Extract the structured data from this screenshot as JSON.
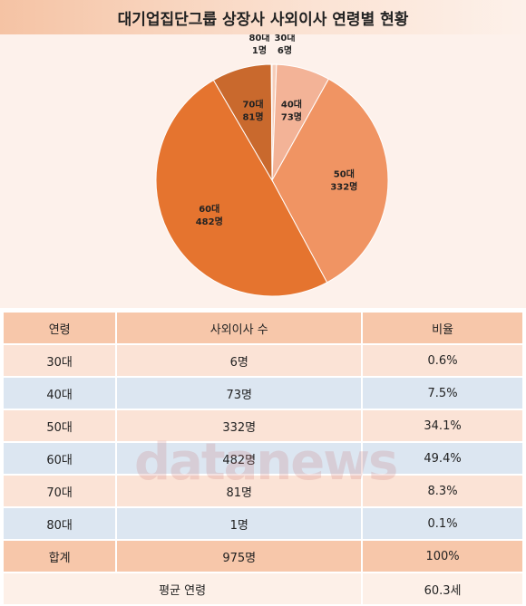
{
  "chart_data": {
    "type": "pie",
    "title": "대기업집단그룹 상장사 사외이사 연령별 현황",
    "categories": [
      "30대",
      "40대",
      "50대",
      "60대",
      "70대",
      "80대"
    ],
    "values": [
      6,
      73,
      332,
      482,
      81,
      1
    ],
    "value_labels": [
      "6명",
      "73명",
      "332명",
      "482명",
      "81명",
      "1명"
    ],
    "colors": [
      "#f6cdb9",
      "#f3b397",
      "#f09463",
      "#e5742f",
      "#c9692d",
      "#f3d8c8"
    ]
  },
  "table": {
    "header": [
      "연령",
      "사외이사 수",
      "비율"
    ],
    "rows": [
      [
        "30대",
        "6명",
        "0.6%"
      ],
      [
        "40대",
        "73명",
        "7.5%"
      ],
      [
        "50대",
        "332명",
        "34.1%"
      ],
      [
        "60대",
        "482명",
        "49.4%"
      ],
      [
        "70대",
        "81명",
        "8.3%"
      ],
      [
        "80대",
        "1명",
        "0.1%"
      ]
    ],
    "total": [
      "합계",
      "975명",
      "100%"
    ],
    "average": [
      "평균 연령",
      "60.3세"
    ]
  },
  "watermark": "datanews"
}
